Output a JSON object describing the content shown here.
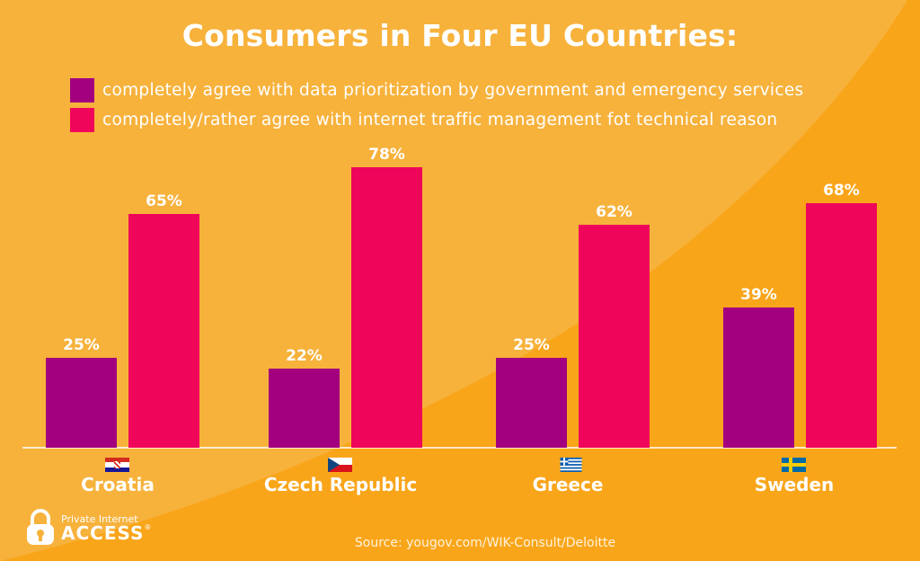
{
  "colors": {
    "background": "#f7b23c",
    "background_arc": "#f9a51a",
    "series_1": "#a3007f",
    "series_2": "#ef0559",
    "text": "#ffffff",
    "axis": "#ffffff"
  },
  "chart_data": {
    "type": "bar",
    "title": "Consumers in Four EU Countries:",
    "categories": [
      "Croatia",
      "Czech Republic",
      "Greece",
      "Sweden"
    ],
    "series": [
      {
        "name": "completely agree with data prioritization by government and emergency services",
        "values": [
          25,
          22,
          25,
          39
        ]
      },
      {
        "name": "completely/rather agree with internet traffic management fot technical reason",
        "values": [
          65,
          78,
          62,
          68
        ]
      }
    ],
    "value_format": "{v}%",
    "ylim": [
      0,
      85
    ],
    "grid": false,
    "legend_position": "top-left",
    "source": "Source: yougov.com/WIK-Consult/Deloitte"
  },
  "flags": [
    "croatia-flag-icon",
    "czech-flag-icon",
    "greece-flag-icon",
    "sweden-flag-icon"
  ],
  "branding": {
    "logo_line1": "Private Internet",
    "logo_line2": "ACCESS",
    "logo_mark": "®",
    "logo_icon": "padlock-icon"
  }
}
